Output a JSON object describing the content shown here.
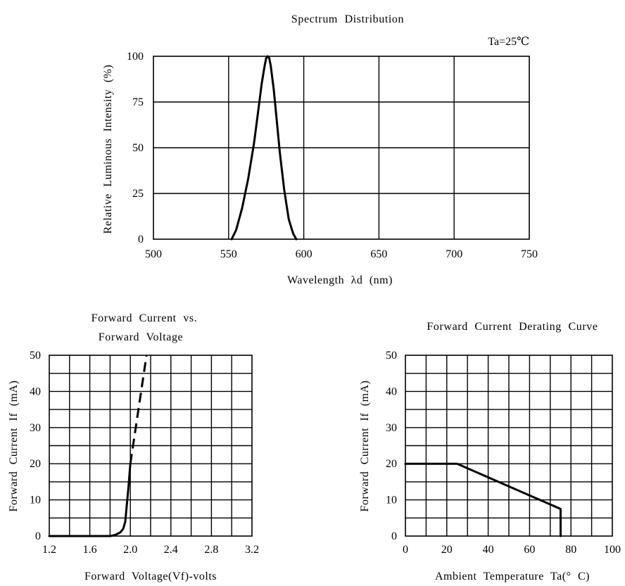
{
  "chart_data": [
    {
      "type": "line",
      "title": "Spectrum   Distribution",
      "annotation": "Ta=25℃",
      "xlabel": "Wavelength    λd (nm)",
      "ylabel": "Relative   Luminous   Intensity   (%)",
      "xlim": [
        500,
        750
      ],
      "ylim": [
        0,
        100
      ],
      "xticks": [
        "500",
        "550",
        "600",
        "650",
        "700",
        "750"
      ],
      "yticks": [
        "0",
        "25",
        "50",
        "75",
        "100"
      ],
      "grid": true,
      "series": [
        {
          "style": "solid",
          "x": [
            552,
            555,
            559,
            563,
            567,
            570,
            572,
            574,
            575,
            576,
            577,
            578,
            580,
            582,
            584,
            587,
            590,
            593,
            595
          ],
          "y": [
            0,
            5,
            17,
            33,
            53,
            72,
            85,
            95,
            99,
            100,
            99,
            95,
            82,
            65,
            48,
            27,
            11,
            3,
            0
          ]
        }
      ]
    },
    {
      "type": "line",
      "title": "Forward   Current   vs.",
      "title2": "Forward   Voltage",
      "xlabel": "Forward Voltage(Vf)-volts",
      "ylabel": "Forward   Current   If  (mA)",
      "xlim": [
        1.2,
        3.2
      ],
      "ylim": [
        0,
        50
      ],
      "xticks": [
        "1.2",
        "1.6",
        "2.0",
        "2.4",
        "2.8",
        "3.2"
      ],
      "yticks": [
        "0",
        "10",
        "20",
        "30",
        "40",
        "50"
      ],
      "grid": true,
      "series": [
        {
          "style": "solid",
          "x": [
            1.2,
            1.8,
            1.85,
            1.9,
            1.93,
            1.95,
            1.96,
            1.98,
            2.0
          ],
          "y": [
            0,
            0,
            0.3,
            1,
            2,
            4,
            7,
            13,
            20
          ]
        },
        {
          "style": "dashed",
          "x": [
            2.0,
            2.16
          ],
          "y": [
            20,
            50
          ]
        }
      ]
    },
    {
      "type": "line",
      "title": "Forward  Current  Derating  Curve",
      "xlabel": "Ambient  Temperature  Ta(° C)",
      "ylabel": "Forward   Current   If  (mA)",
      "xlim": [
        0,
        100
      ],
      "ylim": [
        0,
        50
      ],
      "xticks": [
        "0",
        "20",
        "40",
        "60",
        "80",
        "100"
      ],
      "yticks": [
        "0",
        "10",
        "20",
        "30",
        "40",
        "50"
      ],
      "grid": true,
      "series": [
        {
          "style": "solid",
          "x": [
            0,
            25,
            75,
            75
          ],
          "y": [
            20,
            20,
            7.5,
            0
          ]
        }
      ]
    }
  ]
}
